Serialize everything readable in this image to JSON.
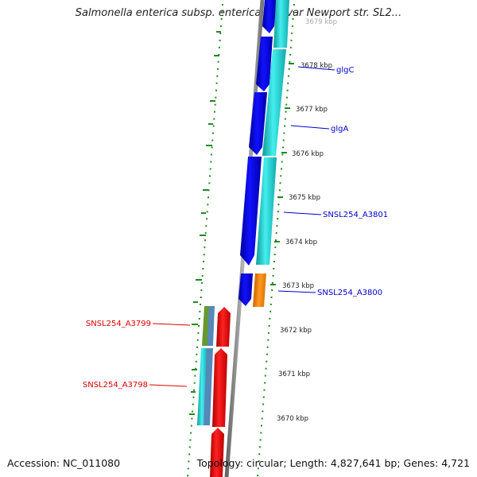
{
  "title": "Salmonella enterica subsp. enterica serovar Newport str. SL2...",
  "accession": "Accession: NC_011080",
  "topology": "Topology: circular; Length: 4,827,641 bp; Genes: 4,721",
  "colors": {
    "forward_cds": "#0000dd",
    "reverse_cds": "#ee0000",
    "cyan_track": "#22cccc",
    "orange_feature": "#ff8800",
    "olive_feature": "#669933",
    "steel_feature": "#5588bb",
    "backbone": "#888888",
    "dots": "#228822",
    "forward_label": "#0000cc",
    "reverse_label": "#dd0000"
  },
  "scale_ticks": [
    "3679 kbp",
    "3678 kbp",
    "3677 kbp",
    "3676 kbp",
    "3675 kbp",
    "3674 kbp",
    "3673 kbp",
    "3672 kbp",
    "3671 kbp",
    "3670 kbp"
  ],
  "gene_labels": {
    "glgC": "glgC",
    "glgA": "glgA",
    "a3801": "SNSL254_A3801",
    "a3800": "SNSL254_A3800",
    "a3799": "SNSL254_A3799",
    "a3798": "SNSL254_A3798"
  }
}
